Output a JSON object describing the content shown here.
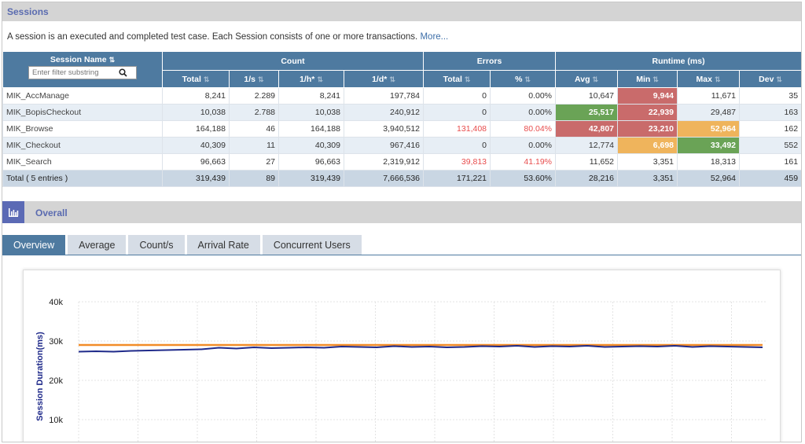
{
  "sessions": {
    "title": "Sessions",
    "description": "A session is an executed and completed test case. Each Session consists of one or more transactions.",
    "more_link": "More...",
    "filter_placeholder": "Enter filter substring",
    "group_headers": {
      "name": "Session Name",
      "count": "Count",
      "errors": "Errors",
      "runtime": "Runtime (ms)"
    },
    "columns": [
      "Total",
      "1/s",
      "1/h*",
      "1/d*",
      "Total",
      "%",
      "Avg",
      "Min",
      "Max",
      "Dev"
    ],
    "rows": [
      {
        "name": "MIK_AccManage",
        "cells": [
          "8,241",
          "2.289",
          "8,241",
          "197,784",
          "0",
          "0.00%",
          "10,647",
          "9,944",
          "11,671",
          "35"
        ]
      },
      {
        "name": "MIK_BopisCheckout",
        "cells": [
          "10,038",
          "2.788",
          "10,038",
          "240,912",
          "0",
          "0.00%",
          "25,517",
          "22,939",
          "29,487",
          "163"
        ]
      },
      {
        "name": "MIK_Browse",
        "cells": [
          "164,188",
          "46",
          "164,188",
          "3,940,512",
          "131,408",
          "80.04%",
          "42,807",
          "23,210",
          "52,964",
          "162"
        ]
      },
      {
        "name": "MIK_Checkout",
        "cells": [
          "40,309",
          "11",
          "40,309",
          "967,416",
          "0",
          "0.00%",
          "12,774",
          "6,698",
          "33,492",
          "552"
        ]
      },
      {
        "name": "MIK_Search",
        "cells": [
          "96,663",
          "27",
          "96,663",
          "2,319,912",
          "39,813",
          "41.19%",
          "11,652",
          "3,351",
          "18,313",
          "161"
        ]
      }
    ],
    "total": {
      "name": "Total ( 5 entries )",
      "cells": [
        "319,439",
        "89",
        "319,439",
        "7,666,536",
        "171,221",
        "53.60%",
        "28,216",
        "3,351",
        "52,964",
        "459"
      ]
    }
  },
  "overall": {
    "title": "Overall",
    "icon": "bar-chart-icon",
    "tabs": [
      "Overview",
      "Average",
      "Count/s",
      "Arrival Rate",
      "Concurrent Users"
    ],
    "active_tab": "Overview"
  },
  "colors": {
    "header": "#4e7aa0",
    "accent": "#5a6bb0",
    "red": "#c96b6b",
    "green": "#6aa356",
    "orange": "#efb45c",
    "error_text": "#e84d4d"
  },
  "chart_data": {
    "type": "line",
    "ylabel": "Session Duration(ms)",
    "ylim": [
      0,
      40000
    ],
    "yticks": [
      "40k",
      "30k",
      "20k",
      "10k"
    ],
    "series": [
      {
        "color": "#f28c28",
        "values": [
          29000,
          29000,
          29000,
          29000,
          29000,
          29000,
          29000,
          29000,
          29000,
          29000,
          29000,
          29000,
          29000,
          29000,
          29000,
          29000,
          29000,
          29000,
          29000,
          29000,
          29000,
          29000,
          29000,
          29000,
          29000,
          29000,
          29000,
          29000,
          29000,
          29000,
          29000,
          29000,
          29000,
          29000,
          29000,
          29000,
          29000,
          29000,
          29000,
          29000
        ]
      },
      {
        "color": "#1f2a8a",
        "values": [
          27300,
          27400,
          27300,
          27500,
          27600,
          27700,
          27800,
          27900,
          28300,
          28100,
          28400,
          28200,
          28300,
          28400,
          28300,
          28600,
          28500,
          28400,
          28700,
          28500,
          28600,
          28400,
          28500,
          28700,
          28600,
          28800,
          28500,
          28700,
          28600,
          28800,
          28500,
          28600,
          28700,
          28600,
          28800,
          28500,
          28700,
          28600,
          28500,
          28400
        ]
      }
    ]
  }
}
